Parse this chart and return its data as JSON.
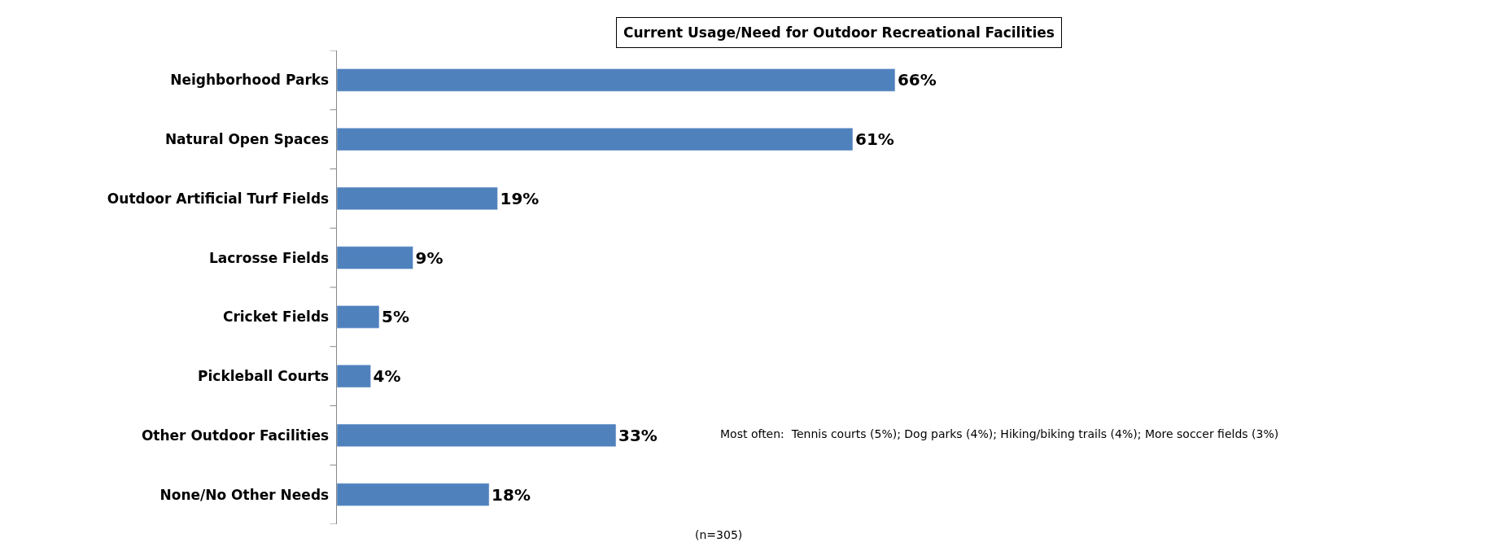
{
  "chart_data": {
    "type": "bar",
    "orientation": "horizontal",
    "title": "Current Usage/Need for Outdoor Recreational Facilities",
    "categories": [
      "Neighborhood Parks",
      "Natural Open Spaces",
      "Outdoor Artificial Turf Fields",
      "Lacrosse Fields",
      "Cricket Fields",
      "Pickleball Courts",
      "Other Outdoor Facilities",
      "None/No Other Needs"
    ],
    "values": [
      66,
      61,
      19,
      9,
      5,
      4,
      33,
      18
    ],
    "value_labels": [
      "66%",
      "61%",
      "19%",
      "9%",
      "5%",
      "4%",
      "33%",
      "18%"
    ],
    "color": "#4f81bd",
    "tick_labels": "y",
    "annotations": [
      "Most often:  Tennis courts (5%); Dog parks (4%); Hiking/biking trails (4%); More soccer fields (3%)",
      "(n=305)"
    ]
  }
}
